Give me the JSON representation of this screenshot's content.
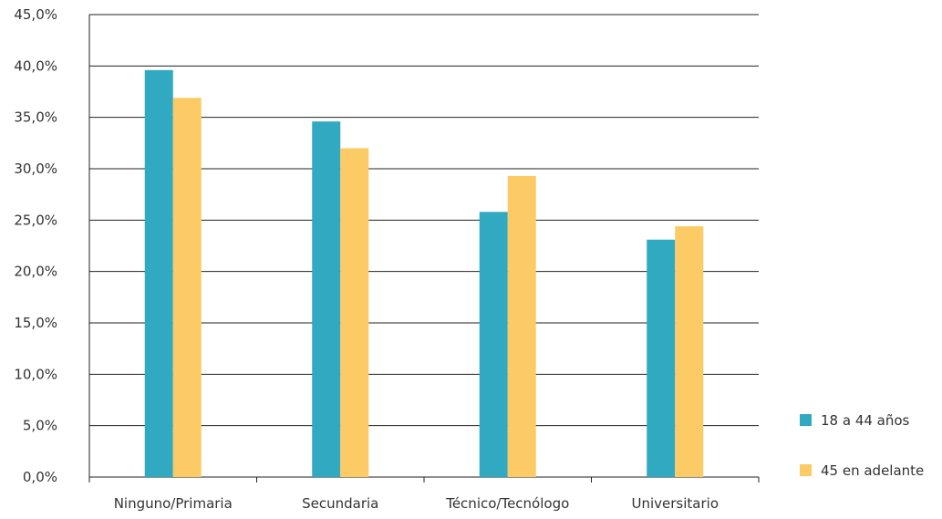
{
  "chart_data": {
    "type": "bar",
    "categories": [
      "Ninguno/Primaria",
      "Secundaria",
      "Técnico/Tecnólogo",
      "Universitario"
    ],
    "series": [
      {
        "name": "18 a 44 años",
        "values": [
          39.6,
          34.6,
          25.8,
          23.1
        ],
        "color": "#31A9C1"
      },
      {
        "name": "45 en adelante",
        "values": [
          36.9,
          32.0,
          29.3,
          24.4
        ],
        "color": "#FDCB65"
      }
    ],
    "y_ticks": [
      "0,0%",
      "5,0%",
      "10,0%",
      "15,0%",
      "20,0%",
      "25,0%",
      "30,0%",
      "35,0%",
      "40,0%",
      "45,0%"
    ],
    "ylim": [
      0,
      45
    ],
    "grid": true,
    "legend_position": "bottom-right",
    "title": "",
    "xlabel": "",
    "ylabel": ""
  }
}
